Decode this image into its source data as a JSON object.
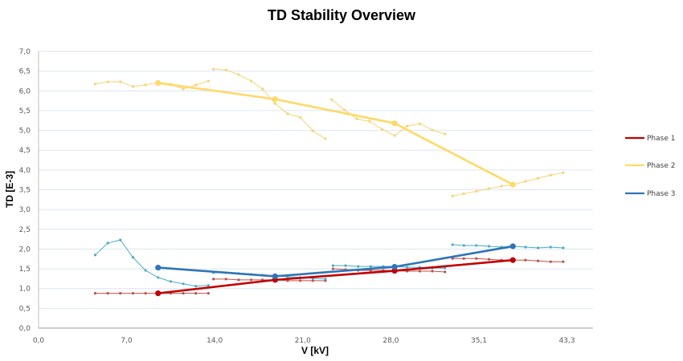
{
  "chart_data": {
    "type": "line",
    "title": "TD Stability Overview",
    "xlabel": "V [kV]",
    "ylabel": "TD [E-3]",
    "xlim": [
      0,
      43.3
    ],
    "ylim": [
      0,
      7.0
    ],
    "x_tick_labels": [
      "0,0",
      "7,0",
      "14,0",
      "21,0",
      "28,0",
      "35,1",
      "43,3"
    ],
    "y_tick_labels": [
      "0,0",
      "0,5",
      "1,0",
      "1,5",
      "2,0",
      "2,5",
      "3,0",
      "3,5",
      "4,0",
      "4,5",
      "5,0",
      "5,5",
      "6,0",
      "6,5",
      "7,0"
    ],
    "grid": true,
    "legend_position": "right",
    "colors": {
      "phase1": "#c00000",
      "phase2": "#ffd966",
      "phase3": "#2e75b6",
      "phase1_detail": "#c0504d",
      "phase2_detail": "#f6d374",
      "phase3_detail": "#4bacc6",
      "grid": "#dce6f0",
      "axis": "#bfbfbf"
    },
    "series": [
      {
        "name": "Phase 1",
        "role": "main",
        "color_key": "phase1",
        "points": [
          [
            9.5,
            0.88
          ],
          [
            18.8,
            1.22
          ],
          [
            28.3,
            1.45
          ],
          [
            37.7,
            1.72
          ]
        ]
      },
      {
        "name": "Phase 2",
        "role": "main",
        "color_key": "phase2",
        "points": [
          [
            9.5,
            6.2
          ],
          [
            18.8,
            5.79
          ],
          [
            28.3,
            5.18
          ],
          [
            37.7,
            3.63
          ]
        ]
      },
      {
        "name": "Phase 3",
        "role": "main",
        "color_key": "phase3",
        "points": [
          [
            9.5,
            1.53
          ],
          [
            18.8,
            1.31
          ],
          [
            28.3,
            1.55
          ],
          [
            37.7,
            2.07
          ]
        ]
      }
    ],
    "detail_series": [
      {
        "name": "Phase 1 step 1",
        "color_key": "phase1_detail",
        "points": [
          [
            4.5,
            0.88
          ],
          [
            5.5,
            0.88
          ],
          [
            6.5,
            0.88
          ],
          [
            7.5,
            0.88
          ],
          [
            8.5,
            0.88
          ],
          [
            9.5,
            0.88
          ],
          [
            10.5,
            0.88
          ],
          [
            11.5,
            0.88
          ],
          [
            12.5,
            0.88
          ],
          [
            13.5,
            0.88
          ]
        ]
      },
      {
        "name": "Phase 1 step 2",
        "color_key": "phase1_detail",
        "points": [
          [
            13.9,
            1.24
          ],
          [
            14.9,
            1.24
          ],
          [
            15.9,
            1.22
          ],
          [
            16.9,
            1.22
          ],
          [
            17.8,
            1.22
          ],
          [
            18.8,
            1.22
          ],
          [
            19.8,
            1.2
          ],
          [
            20.8,
            1.2
          ],
          [
            21.8,
            1.2
          ],
          [
            22.8,
            1.2
          ]
        ]
      },
      {
        "name": "Phase 1 step 3",
        "color_key": "phase1_detail",
        "points": [
          [
            23.4,
            1.5
          ],
          [
            24.4,
            1.48
          ],
          [
            25.4,
            1.46
          ],
          [
            26.4,
            1.46
          ],
          [
            27.4,
            1.46
          ],
          [
            28.3,
            1.45
          ],
          [
            29.3,
            1.44
          ],
          [
            30.3,
            1.44
          ],
          [
            31.3,
            1.44
          ],
          [
            32.3,
            1.42
          ]
        ]
      },
      {
        "name": "Phase 1 step 4",
        "color_key": "phase1_detail",
        "points": [
          [
            32.9,
            1.76
          ],
          [
            33.8,
            1.76
          ],
          [
            34.8,
            1.76
          ],
          [
            35.8,
            1.74
          ],
          [
            36.8,
            1.72
          ],
          [
            37.7,
            1.72
          ],
          [
            38.7,
            1.72
          ],
          [
            39.7,
            1.7
          ],
          [
            40.7,
            1.68
          ],
          [
            41.7,
            1.68
          ]
        ]
      },
      {
        "name": "Phase 2 step 1",
        "color_key": "phase2_detail",
        "points": [
          [
            4.5,
            6.17
          ],
          [
            5.5,
            6.23
          ],
          [
            6.5,
            6.23
          ],
          [
            7.5,
            6.11
          ],
          [
            8.5,
            6.15
          ],
          [
            9.5,
            6.21
          ],
          [
            10.5,
            6.17
          ],
          [
            11.5,
            6.05
          ],
          [
            12.5,
            6.15
          ],
          [
            13.5,
            6.25
          ]
        ]
      },
      {
        "name": "Phase 2 step 2",
        "color_key": "phase2_detail",
        "points": [
          [
            13.9,
            6.55
          ],
          [
            14.9,
            6.53
          ],
          [
            15.9,
            6.41
          ],
          [
            16.9,
            6.25
          ],
          [
            17.8,
            6.05
          ],
          [
            18.8,
            5.68
          ],
          [
            19.8,
            5.42
          ],
          [
            20.8,
            5.33
          ],
          [
            21.8,
            4.99
          ],
          [
            22.8,
            4.79
          ]
        ]
      },
      {
        "name": "Phase 2 step 3",
        "color_key": "phase2_detail",
        "points": [
          [
            23.3,
            5.78
          ],
          [
            24.3,
            5.52
          ],
          [
            25.3,
            5.29
          ],
          [
            26.3,
            5.23
          ],
          [
            27.3,
            5.03
          ],
          [
            28.3,
            4.87
          ],
          [
            29.3,
            5.11
          ],
          [
            30.3,
            5.17
          ],
          [
            31.3,
            5.01
          ],
          [
            32.3,
            4.91
          ]
        ]
      },
      {
        "name": "Phase 2 step 4",
        "color_key": "phase2_detail",
        "points": [
          [
            32.9,
            3.34
          ],
          [
            33.8,
            3.4
          ],
          [
            34.8,
            3.46
          ],
          [
            35.8,
            3.53
          ],
          [
            36.8,
            3.59
          ],
          [
            37.7,
            3.63
          ],
          [
            38.7,
            3.71
          ],
          [
            39.7,
            3.79
          ],
          [
            40.7,
            3.87
          ],
          [
            41.7,
            3.93
          ]
        ]
      },
      {
        "name": "Phase 3 step 1",
        "color_key": "phase3_detail",
        "points": [
          [
            4.5,
            1.85
          ],
          [
            5.5,
            2.15
          ],
          [
            6.5,
            2.23
          ],
          [
            7.5,
            1.79
          ],
          [
            8.5,
            1.46
          ],
          [
            9.5,
            1.28
          ],
          [
            10.5,
            1.18
          ],
          [
            11.5,
            1.12
          ],
          [
            12.5,
            1.06
          ],
          [
            13.5,
            1.08
          ]
        ]
      },
      {
        "name": "Phase 3 step 2",
        "color_key": "phase3_detail",
        "points": [
          [
            13.9,
            1.4
          ],
          [
            14.9,
            1.4
          ],
          [
            15.9,
            1.38
          ],
          [
            16.9,
            1.36
          ],
          [
            17.8,
            1.34
          ],
          [
            18.8,
            1.32
          ],
          [
            19.8,
            1.3
          ],
          [
            20.8,
            1.28
          ],
          [
            21.8,
            1.26
          ],
          [
            22.8,
            1.24
          ]
        ]
      },
      {
        "name": "Phase 3 step 3",
        "color_key": "phase3_detail",
        "points": [
          [
            23.4,
            1.58
          ],
          [
            24.4,
            1.58
          ],
          [
            25.4,
            1.56
          ],
          [
            26.4,
            1.56
          ],
          [
            27.4,
            1.56
          ],
          [
            28.3,
            1.56
          ],
          [
            29.3,
            1.54
          ],
          [
            30.3,
            1.54
          ],
          [
            31.3,
            1.52
          ],
          [
            32.3,
            1.52
          ]
        ]
      },
      {
        "name": "Phase 3 step 4",
        "color_key": "phase3_detail",
        "points": [
          [
            32.9,
            2.11
          ],
          [
            33.8,
            2.09
          ],
          [
            34.8,
            2.09
          ],
          [
            35.8,
            2.07
          ],
          [
            36.8,
            2.05
          ],
          [
            37.7,
            2.07
          ],
          [
            38.7,
            2.05
          ],
          [
            39.7,
            2.03
          ],
          [
            40.7,
            2.05
          ],
          [
            41.7,
            2.03
          ]
        ]
      }
    ],
    "legend": [
      {
        "label": "Phase 1",
        "color_key": "phase1"
      },
      {
        "label": "Phase 2",
        "color_key": "phase2"
      },
      {
        "label": "Phase 3",
        "color_key": "phase3"
      }
    ]
  }
}
